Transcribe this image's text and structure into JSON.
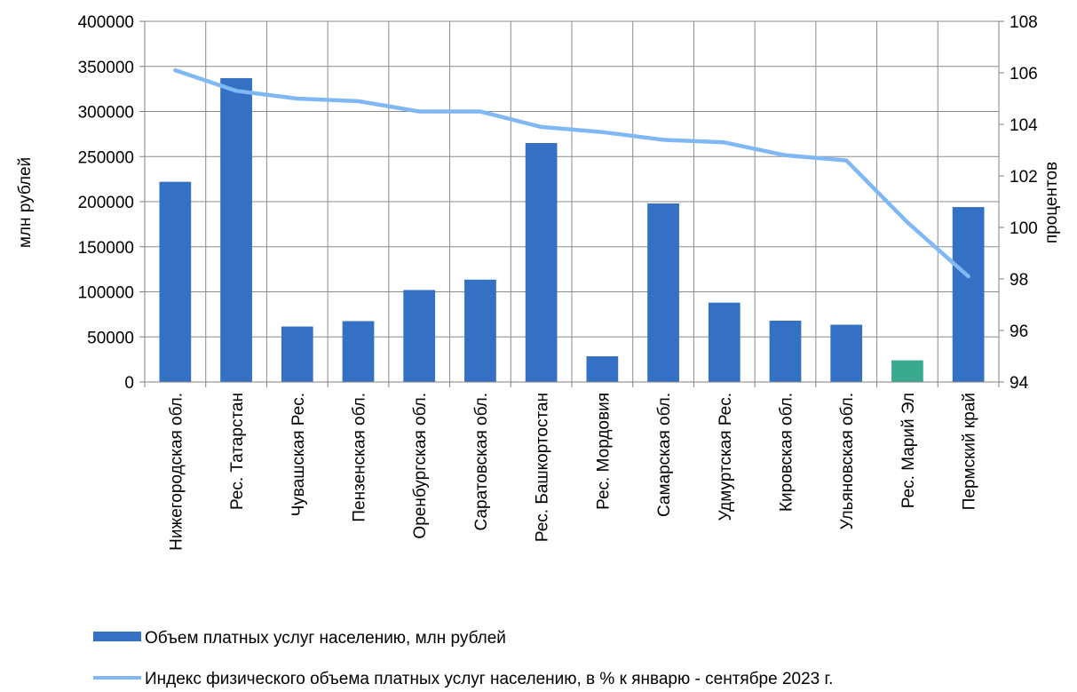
{
  "chart_data": {
    "type": "bar+line",
    "title": "",
    "categories": [
      "Нижегородская обл.",
      "Рес. Татарстан",
      "Чувашская Рес.",
      "Пензенская обл.",
      "Оренбургская обл.",
      "Саратовская обл.",
      "Рес. Башкортостан",
      "Рес. Мордовия",
      "Самарская обл.",
      "Удмуртская Рес.",
      "Кировская обл.",
      "Ульяновская обл.",
      "Рес. Марий Эл",
      "Пермский край"
    ],
    "series": [
      {
        "name": "Объем платных услуг населению, млн рублей",
        "type": "bar",
        "axis": "left",
        "color": "#3470C4",
        "highlight_color": "#3AAA8E",
        "highlight_index": 12,
        "values": [
          222000,
          337000,
          61500,
          67500,
          102000,
          113500,
          265000,
          28500,
          198000,
          88000,
          68000,
          63500,
          24000,
          194000
        ]
      },
      {
        "name": "Индекс физического объема платных услуг населению, в % к январю - сентябре 2023 г.",
        "type": "line",
        "axis": "right",
        "color": "#7FB8F5",
        "values": [
          106.1,
          105.3,
          105.0,
          104.9,
          104.5,
          104.5,
          103.9,
          103.7,
          103.4,
          103.3,
          102.8,
          102.6,
          100.2,
          98.1
        ]
      }
    ],
    "ylabel": "млн рублей",
    "ylim": [
      0,
      400000
    ],
    "yticks": [
      "0",
      "50000",
      "100000",
      "150000",
      "200000",
      "250000",
      "300000",
      "350000",
      "400000"
    ],
    "y2label": "процентов",
    "y2lim": [
      94,
      108
    ],
    "y2ticks": [
      "94",
      "96",
      "98",
      "100",
      "102",
      "104",
      "106",
      "108"
    ],
    "grid": true,
    "legend": "bottom"
  }
}
